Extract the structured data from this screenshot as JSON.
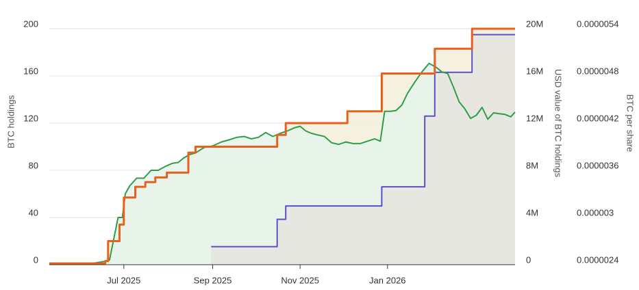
{
  "chart_data": {
    "type": "line",
    "title": "",
    "x_axis": {
      "type": "date",
      "range": [
        "2025-05-10",
        "2026-03-31"
      ],
      "ticks": [
        {
          "date": "2025-07-01",
          "label": "Jul 2025"
        },
        {
          "date": "2025-09-01",
          "label": "Sep 2025"
        },
        {
          "date": "2025-11-01",
          "label": "Nov 2025"
        },
        {
          "date": "2026-01-01",
          "label": "Jan 2026"
        }
      ]
    },
    "y_axes": {
      "left": {
        "label": "BTC holdings",
        "range": [
          0,
          200
        ],
        "ticks": [
          "0",
          "40",
          "80",
          "120",
          "160",
          "200"
        ]
      },
      "right1": {
        "label": "USD value of BTC holdings",
        "range": [
          0,
          20000000
        ],
        "ticks": [
          "0",
          "4M",
          "8M",
          "12M",
          "16M",
          "20M"
        ]
      },
      "right2": {
        "label": "BTC per share",
        "range": [
          2.4e-06,
          5.4e-06
        ],
        "ticks": [
          "0.0000024",
          "0.000003",
          "0.0000036",
          "0.0000042",
          "0.0000048",
          "0.0000054"
        ]
      }
    },
    "grid": true,
    "legend": "none",
    "series": [
      {
        "id": "btc_holdings",
        "axis": "left",
        "color": "#e8601c",
        "fill": "#f2eedb",
        "step": true,
        "x": [
          "2025-05-10",
          "2025-06-15",
          "2025-06-18",
          "2025-06-20",
          "2025-06-28",
          "2025-07-01",
          "2025-07-09",
          "2025-07-16",
          "2025-07-23",
          "2025-07-31",
          "2025-08-15",
          "2025-08-20",
          "2025-10-10",
          "2025-10-16",
          "2025-10-22",
          "2025-11-30",
          "2025-12-04",
          "2025-12-23",
          "2025-12-28",
          "2026-01-27",
          "2026-02-03",
          "2026-02-22",
          "2026-03-01",
          "2026-03-31"
        ],
        "y": [
          1,
          1,
          3,
          20,
          34,
          57,
          66,
          70,
          74,
          78,
          95,
          100,
          100,
          110,
          120,
          120,
          130,
          130,
          162,
          162,
          183,
          183,
          200,
          200
        ]
      },
      {
        "id": "btc_per_share",
        "axis": "right2",
        "color": "#2e9e4a",
        "fill": "#e7f4ea",
        "x": [
          "2025-05-10",
          "2025-06-10",
          "2025-06-17",
          "2025-06-21",
          "2025-06-27",
          "2025-06-30",
          "2025-07-02",
          "2025-07-05",
          "2025-07-10",
          "2025-07-15",
          "2025-07-20",
          "2025-07-25",
          "2025-07-30",
          "2025-08-04",
          "2025-08-08",
          "2025-08-12",
          "2025-08-16",
          "2025-08-20",
          "2025-08-26",
          "2025-09-01",
          "2025-09-07",
          "2025-09-13",
          "2025-09-18",
          "2025-09-23",
          "2025-09-28",
          "2025-10-03",
          "2025-10-08",
          "2025-10-13",
          "2025-10-18",
          "2025-10-23",
          "2025-10-28",
          "2025-11-01",
          "2025-11-05",
          "2025-11-09",
          "2025-11-13",
          "2025-11-18",
          "2025-11-23",
          "2025-11-28",
          "2025-12-03",
          "2025-12-08",
          "2025-12-13",
          "2025-12-18",
          "2025-12-23",
          "2025-12-27",
          "2025-12-30",
          "2026-01-03",
          "2026-01-07",
          "2026-01-11",
          "2026-01-15",
          "2026-01-20",
          "2026-01-25",
          "2026-01-30",
          "2026-02-04",
          "2026-02-08",
          "2026-02-12",
          "2026-02-16",
          "2026-02-20",
          "2026-02-24",
          "2026-02-28",
          "2026-03-04",
          "2026-03-08",
          "2026-03-12",
          "2026-03-16",
          "2026-03-20",
          "2026-03-24",
          "2026-03-28",
          "2026-03-31"
        ],
        "y": [
          2.42e-06,
          2.42e-06,
          2.44e-06,
          2.46e-06,
          3e-06,
          3e-06,
          3.3e-06,
          3.4e-06,
          3.5e-06,
          3.5e-06,
          3.6e-06,
          3.6e-06,
          3.65e-06,
          3.69e-06,
          3.7e-06,
          3.76e-06,
          3.8e-06,
          3.82e-06,
          3.89e-06,
          3.91e-06,
          3.96e-06,
          3.99e-06,
          4.02e-06,
          4.03e-06,
          4e-06,
          4.02e-06,
          4.08e-06,
          4.03e-06,
          4.07e-06,
          4.1e-06,
          4.14e-06,
          4.16e-06,
          4.1e-06,
          4.07e-06,
          4.05e-06,
          4.03e-06,
          3.95e-06,
          3.93e-06,
          3.96e-06,
          3.94e-06,
          3.94e-06,
          3.97e-06,
          4e-06,
          3.97e-06,
          4.35e-06,
          4.35e-06,
          4.36e-06,
          4.43e-06,
          4.58e-06,
          4.72e-06,
          4.85e-06,
          4.96e-06,
          4.91e-06,
          4.85e-06,
          4.83e-06,
          4.66e-06,
          4.47e-06,
          4.38e-06,
          4.26e-06,
          4.3e-06,
          4.4e-06,
          4.25e-06,
          4.33e-06,
          4.32e-06,
          4.31e-06,
          4.28e-06,
          4.34e-06
        ]
      },
      {
        "id": "usd_value",
        "axis": "right1",
        "color": "#5b4fc4",
        "fill": "#e6e6df",
        "step": true,
        "x": [
          "2025-08-31",
          "2025-10-10",
          "2025-10-16",
          "2025-10-22",
          "2025-12-23",
          "2025-12-28",
          "2026-01-27",
          "2026-02-03",
          "2026-03-01",
          "2026-03-31"
        ],
        "y": [
          1530000,
          1530000,
          3850000,
          4980000,
          4980000,
          6600000,
          12600000,
          16300000,
          19500000,
          19500000
        ]
      }
    ]
  }
}
